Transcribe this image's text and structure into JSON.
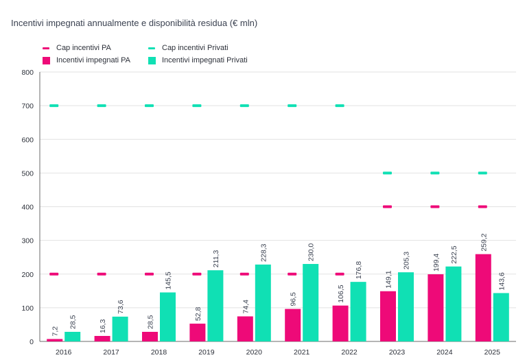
{
  "colors": {
    "pa": "#ee0a78",
    "privati": "#10e0b4",
    "grid": "#e2e2e2",
    "axis": "#6b6b6b"
  },
  "chart_data": {
    "type": "bar",
    "title": "Incentivi impegnati annualmente e disponibilità residua (€ mln)",
    "categories": [
      "2016",
      "2017",
      "2018",
      "2019",
      "2020",
      "2021",
      "2022",
      "2023",
      "2024",
      "2025"
    ],
    "series": [
      {
        "name": "Incentivi impegnati PA",
        "kind": "bar",
        "values": [
          7.2,
          16.3,
          28.5,
          52.8,
          74.4,
          96.5,
          106.5,
          149.1,
          199.4,
          259.2
        ],
        "labels": [
          "7,2",
          "16,3",
          "28,5",
          "52,8",
          "74,4",
          "96,5",
          "106,5",
          "149,1",
          "199,4",
          "259,2"
        ]
      },
      {
        "name": "Incentivi impegnati Privati",
        "kind": "bar",
        "values": [
          28.5,
          73.6,
          145.5,
          211.3,
          228.3,
          230.0,
          176.8,
          205.3,
          222.5,
          143.6
        ],
        "labels": [
          "28,5",
          "73,6",
          "145,5",
          "211,3",
          "228,3",
          "230,0",
          "176,8",
          "205,3",
          "222,5",
          "143,6"
        ]
      },
      {
        "name": "Cap incentivi PA",
        "kind": "marker",
        "values": [
          200,
          200,
          200,
          200,
          200,
          200,
          200,
          400,
          400,
          400
        ]
      },
      {
        "name": "Cap incentivi Privati",
        "kind": "marker",
        "values": [
          700,
          700,
          700,
          700,
          700,
          700,
          700,
          500,
          500,
          500
        ]
      }
    ],
    "yticks": [
      "0",
      "100",
      "200",
      "300",
      "400",
      "500",
      "600",
      "700",
      "800"
    ],
    "ylim": [
      0,
      800
    ],
    "grid": true,
    "legend_position": "top-left"
  },
  "legend": [
    {
      "label": "Cap incentivi PA",
      "kind": "dash",
      "color": "#ee0a78"
    },
    {
      "label": "Cap incentivi Privati",
      "kind": "dash",
      "color": "#10e0b4"
    },
    {
      "label": "Incentivi impegnati PA",
      "kind": "square",
      "color": "#ee0a78"
    },
    {
      "label": "Incentivi impegnati Privati",
      "kind": "square",
      "color": "#10e0b4"
    }
  ]
}
